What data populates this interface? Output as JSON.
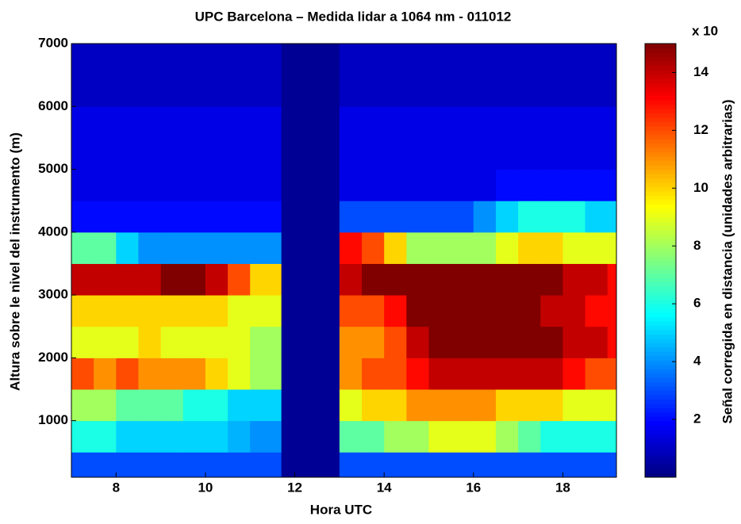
{
  "chart_data": {
    "type": "heatmap",
    "title": "UPC Barcelona – Medida lidar a 1064 nm - 011012",
    "x_label": "Hora UTC",
    "y_label": "Altura sobre le nivel del instrumento (m)",
    "colorbar_label": "Señal corregida en distancia (unidades arbitrarias)",
    "colorbar_multiplier": "x 10",
    "colormap": "jet",
    "x_edges": [
      7,
      7.5,
      8,
      8.5,
      9,
      9.5,
      10,
      10.5,
      11,
      11.7,
      13,
      13.5,
      14,
      14.5,
      15,
      15.5,
      16,
      16.5,
      17,
      17.5,
      18,
      18.5,
      19,
      19.2
    ],
    "y_edges": [
      100,
      500,
      1000,
      1500,
      2000,
      2500,
      3000,
      3500,
      4000,
      4500,
      5000,
      6000,
      7000
    ],
    "z": [
      [
        3,
        3,
        3,
        3,
        3,
        3,
        3,
        3,
        3,
        0.3,
        3,
        3,
        3,
        3,
        3,
        3,
        3,
        3,
        3,
        3,
        3,
        3,
        3
      ],
      [
        6,
        6,
        5,
        5,
        5,
        5,
        5,
        4.5,
        4,
        0.3,
        7,
        7,
        8,
        8,
        9,
        9,
        9,
        8,
        7,
        6,
        6,
        6,
        6
      ],
      [
        8,
        8,
        7,
        7,
        7,
        6,
        6,
        5,
        5,
        0.3,
        9,
        10,
        10,
        11,
        11,
        11,
        11,
        10,
        10,
        10,
        9,
        9,
        9
      ],
      [
        12,
        11,
        12,
        11,
        11,
        11,
        10,
        9,
        8,
        0.3,
        11,
        12,
        12,
        13,
        14,
        14,
        14,
        14,
        14,
        14,
        13,
        12,
        12
      ],
      [
        9,
        9,
        9,
        10,
        9,
        9,
        9,
        9,
        8,
        0.3,
        11,
        11,
        12,
        14,
        15,
        15,
        15,
        15,
        15,
        15,
        14,
        14,
        13
      ],
      [
        10,
        10,
        10,
        10,
        10,
        10,
        10,
        9,
        9,
        0.3,
        12,
        12,
        13,
        15,
        15,
        15,
        15,
        15,
        15,
        14,
        14,
        13,
        13
      ],
      [
        14,
        14,
        14,
        14,
        15,
        15,
        14,
        12,
        10,
        0.3,
        14,
        15,
        15,
        15,
        15,
        15,
        15,
        15,
        15,
        15,
        14,
        14,
        13
      ],
      [
        7,
        7,
        5,
        4,
        4,
        4,
        4,
        4,
        4,
        0.3,
        13,
        12,
        10,
        8,
        8,
        8,
        8,
        9,
        10,
        10,
        9,
        9,
        9
      ],
      [
        2,
        2,
        2,
        2,
        2,
        2,
        2,
        2,
        2,
        0.3,
        3,
        3,
        3,
        3,
        3,
        3,
        4,
        5,
        6,
        6,
        6,
        5,
        5
      ],
      [
        1.5,
        1.5,
        1.5,
        1.5,
        1.5,
        1.5,
        1.5,
        1.5,
        1.5,
        0.3,
        1.5,
        1.5,
        1.5,
        1.5,
        1.5,
        1.5,
        1.5,
        2,
        2,
        2,
        2,
        2,
        2
      ],
      [
        1.5,
        1.5,
        1.5,
        1.5,
        1.5,
        1.5,
        1.5,
        1.5,
        1.5,
        0.3,
        1.5,
        1.5,
        1.5,
        1.5,
        1.5,
        1.5,
        1.5,
        1.5,
        1.5,
        1.5,
        1.5,
        1.5,
        1.5
      ],
      [
        1,
        1,
        1,
        1,
        1,
        1,
        1,
        1,
        1,
        0.3,
        1,
        1,
        1,
        1,
        1,
        1,
        1,
        1,
        1,
        1,
        1,
        1,
        1
      ]
    ],
    "xlim": [
      7,
      19.2
    ],
    "xticks": [
      8,
      10,
      12,
      14,
      16,
      18
    ],
    "ylim": [
      100,
      7000
    ],
    "yticks": [
      1000,
      2000,
      3000,
      4000,
      5000,
      6000,
      7000
    ],
    "zlim": [
      0,
      15
    ],
    "zticks": [
      2,
      4,
      6,
      8,
      10,
      12,
      14
    ]
  }
}
